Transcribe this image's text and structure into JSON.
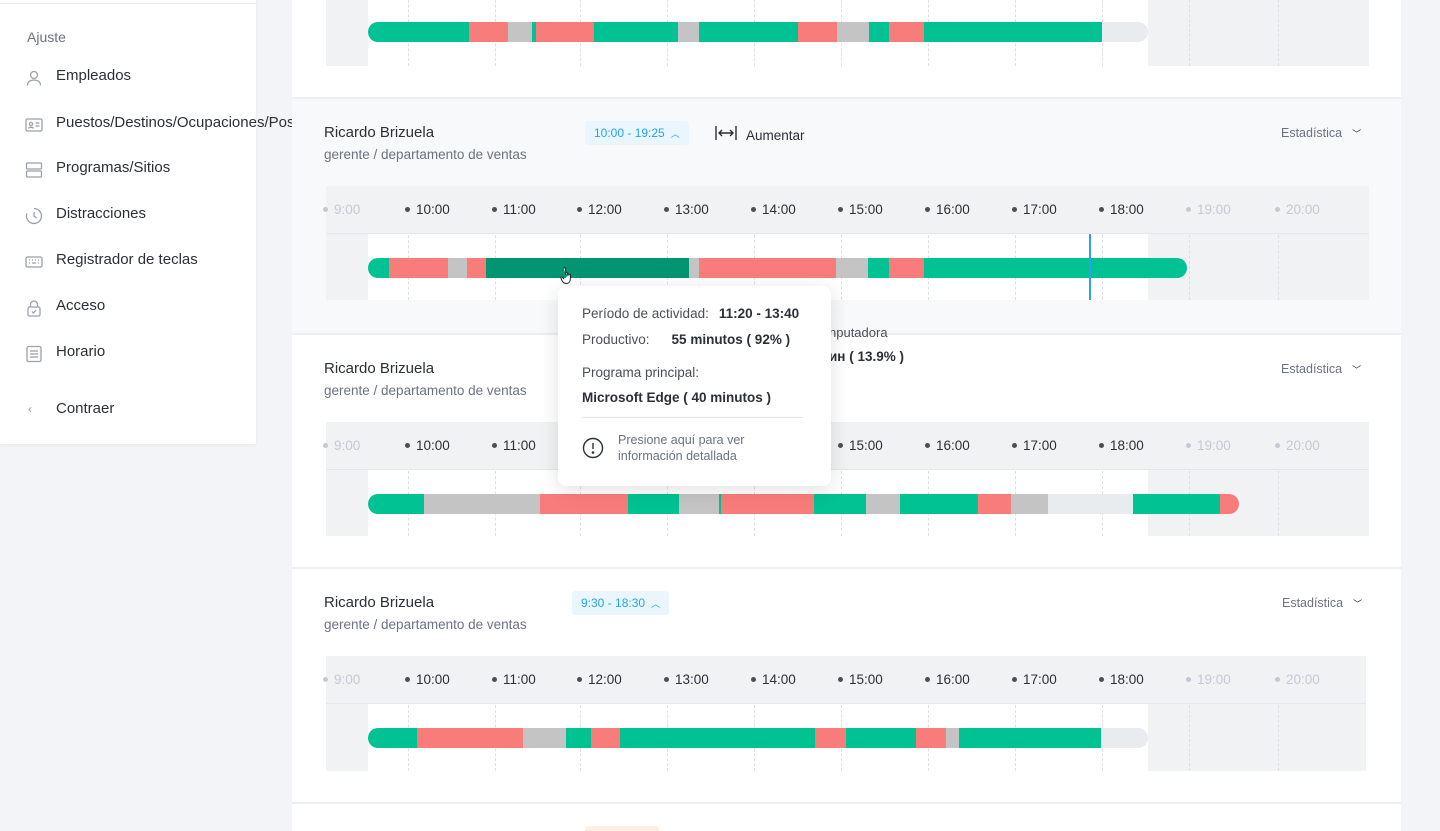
{
  "sidebar": {
    "section_title": "Ajuste",
    "items": [
      {
        "label": "Empleados",
        "icon": "person-icon"
      },
      {
        "label": "Puestos/Destinos/Ocupaciones/Posiciones",
        "icon": "id-card-icon"
      },
      {
        "label": "Programas/Sitios",
        "icon": "server-icon"
      },
      {
        "label": "Distracciones",
        "icon": "clock-icon"
      },
      {
        "label": "Registrador de teclas",
        "icon": "keyboard-icon"
      },
      {
        "label": "Acceso",
        "icon": "lock-icon"
      },
      {
        "label": "Horario",
        "icon": "list-icon"
      }
    ],
    "collapse_label": "Contraer"
  },
  "hours": [
    "9:00",
    "10:00",
    "11:00",
    "12:00",
    "13:00",
    "14:00",
    "15:00",
    "16:00",
    "17:00",
    "18:00",
    "19:00",
    "20:00"
  ],
  "colors": {
    "productive": "#00c292",
    "productive_active": "#019671",
    "unproductive": "#f87d7a",
    "neutral": "#c4c4c4",
    "empty": "#e9ecef",
    "accent": "#23a4e6"
  },
  "employees": [
    {
      "name": "Ricardo Brizuela",
      "role": "gerente / departamento de ventas",
      "time_range": "10:00 - 19:25",
      "zoom_label": "Aumentar",
      "stat_label": "Estadística"
    },
    {
      "name": "Ricardo Brizuela",
      "role": "gerente / departamento de ventas",
      "stat_label": "Estadística"
    },
    {
      "name": "Ricardo Brizuela",
      "role": "gerente / departamento de ventas",
      "time_range": "9:30 - 18:30",
      "stat_label": "Estadística"
    }
  ],
  "tooltip": {
    "period_label": "Período de actividad:",
    "period_value": "11:20 - 13:40",
    "productive_label": "Productivo:",
    "productive_value": "55 minutos ( 92% )",
    "program_label": "Programa principal:",
    "program_value": "Microsoft Edge ( 40 minutos )",
    "hint": "Presione aquí para ver información detallada"
  },
  "hidden_fragments": {
    "line1": "nputadora",
    "line2": "ин ( 13.9% )"
  }
}
